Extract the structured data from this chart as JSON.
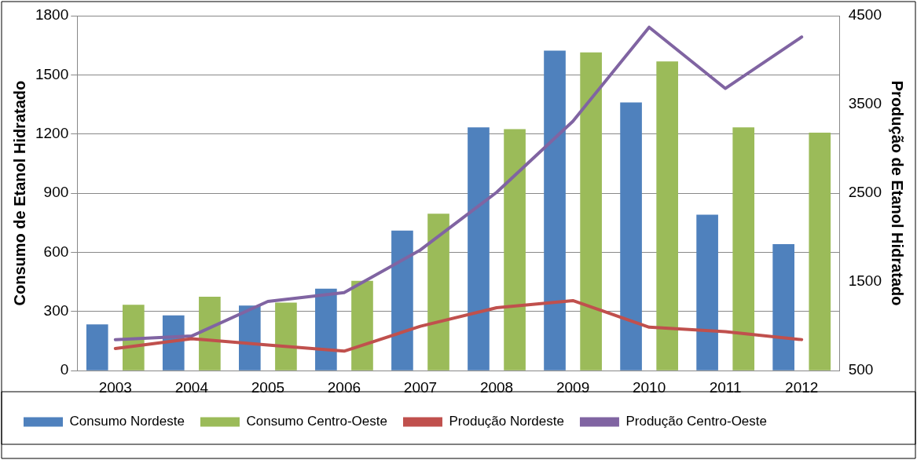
{
  "chart_data": {
    "type": "bar",
    "categories": [
      "2003",
      "2004",
      "2005",
      "2006",
      "2007",
      "2008",
      "2009",
      "2010",
      "2011",
      "2012"
    ],
    "ylabel": "Consumo de Etanol Hidratado",
    "y2label": "Produção de Etanol Hidratado",
    "ylim": [
      0,
      1800
    ],
    "yticks": [
      0,
      300,
      600,
      900,
      1200,
      1500,
      1800
    ],
    "y2lim": [
      500,
      4500
    ],
    "y2ticks": [
      500,
      1500,
      2500,
      3500,
      4500
    ],
    "grid": "y",
    "legend": "bottom",
    "series": [
      {
        "name": "Consumo Nordeste",
        "color": "#4f81bd",
        "values": [
          235,
          280,
          330,
          416,
          710,
          1234,
          1623,
          1360,
          791,
          642
        ]
      },
      {
        "name": "Consumo Centro-Oeste",
        "color": "#9bbb59",
        "values": [
          334,
          375,
          345,
          456,
          796,
          1225,
          1614,
          1568,
          1234,
          1207
        ]
      },
      {
        "name": "Produção Nordeste",
        "type": "line",
        "axis": "y2",
        "color": "#c0504d",
        "values": [
          750,
          860,
          790,
          720,
          1000,
          1210,
          1290,
          990,
          940,
          850
        ]
      },
      {
        "name": "Produção Centro-Oeste",
        "type": "line",
        "axis": "y2",
        "color": "#8064a2",
        "values": [
          850,
          890,
          1280,
          1380,
          1860,
          2510,
          3310,
          4370,
          3680,
          4260
        ]
      }
    ]
  }
}
